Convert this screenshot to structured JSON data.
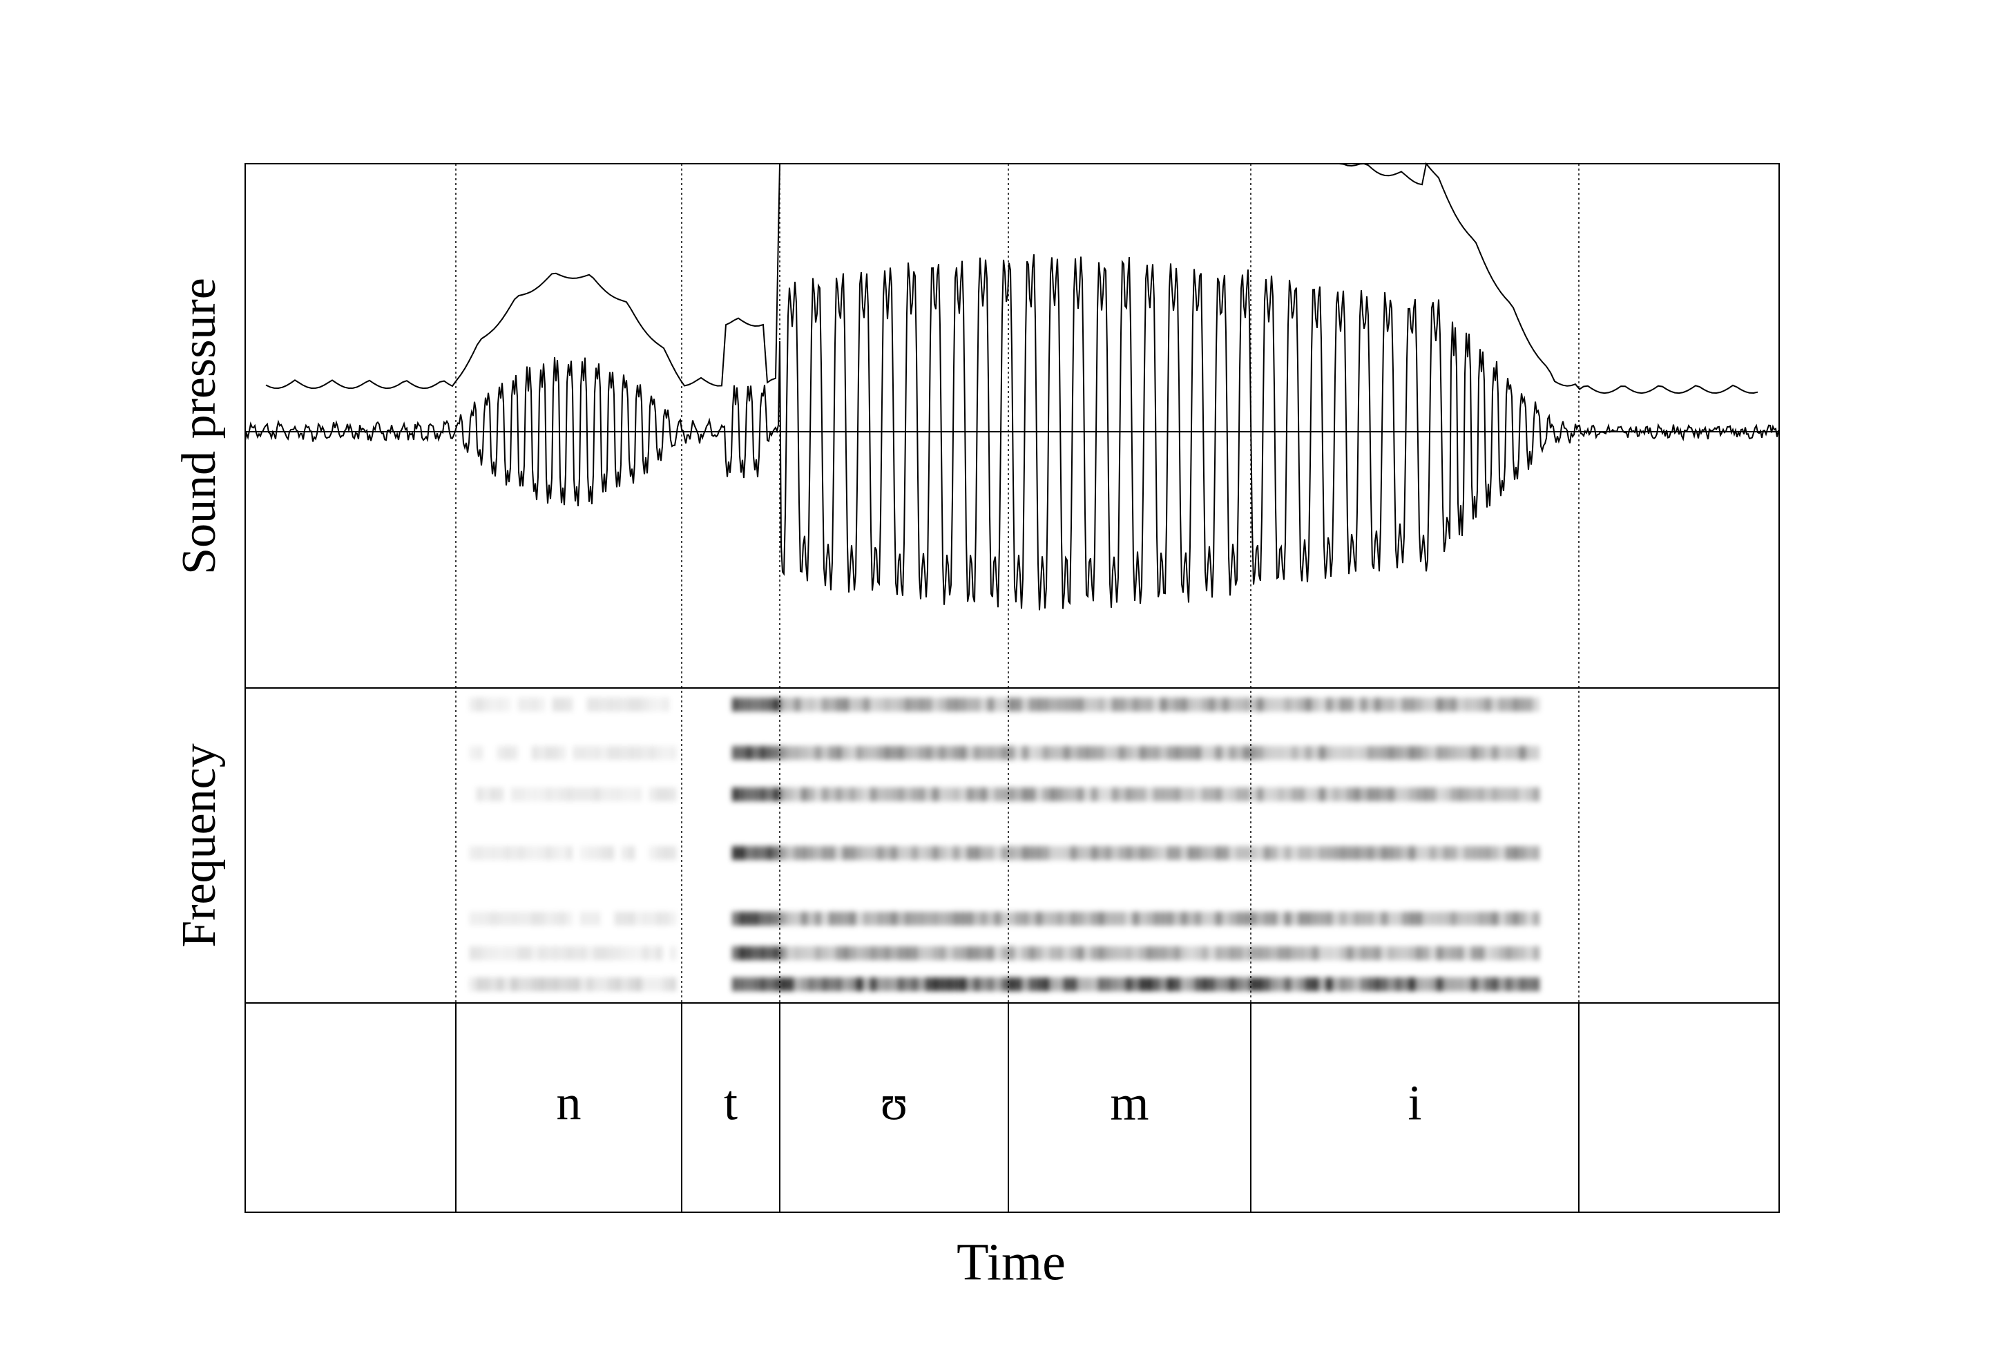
{
  "y_labels": [
    "Sound pressure",
    "Frequency"
  ],
  "x_label": "Time",
  "segments": [
    {
      "label": "n"
    },
    {
      "label": "t"
    },
    {
      "label": "ʊ"
    },
    {
      "label": "m"
    },
    {
      "label": "i"
    }
  ]
}
